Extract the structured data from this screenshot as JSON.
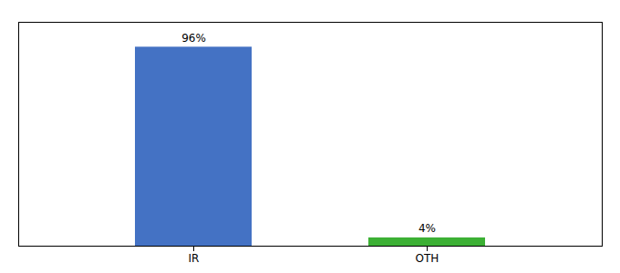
{
  "chart_data": {
    "type": "bar",
    "categories": [
      "IR",
      "OTH"
    ],
    "values": [
      96,
      4
    ],
    "colors": [
      "#4472c4",
      "#3cb034"
    ],
    "value_labels": [
      "96%",
      "4%"
    ],
    "data_labels": true,
    "ylim": [
      0,
      108
    ],
    "grid": false,
    "tick_labels": "x"
  }
}
